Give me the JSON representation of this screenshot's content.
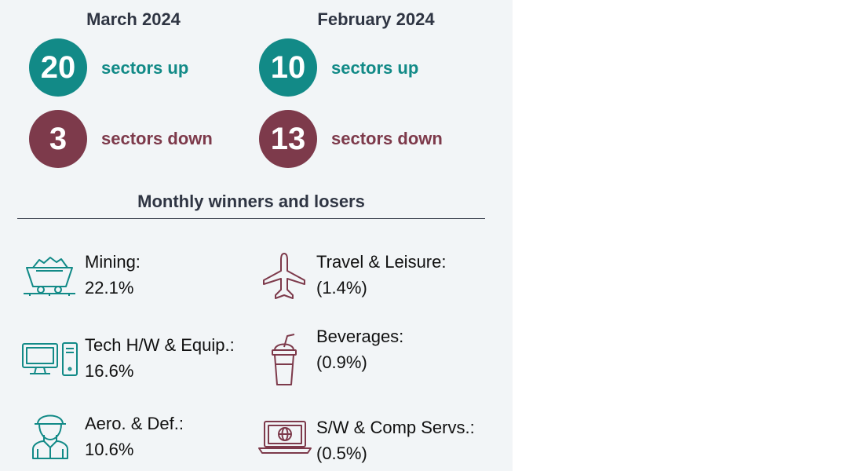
{
  "months": [
    {
      "title": "March 2024",
      "up_count": "20",
      "up_label": "sectors up",
      "down_count": "3",
      "down_label": "sectors down"
    },
    {
      "title": "February 2024",
      "up_count": "10",
      "up_label": "sectors up",
      "down_count": "13",
      "down_label": "sectors down"
    }
  ],
  "section_title": "Monthly winners and losers",
  "winners": [
    {
      "name": "Mining:",
      "value": "22.1%",
      "icon": "mine-cart-icon"
    },
    {
      "name": "Tech H/W & Equip.:",
      "value": "16.6%",
      "icon": "desktop-computer-icon"
    },
    {
      "name": "Aero. & Def.:",
      "value": "10.6%",
      "icon": "soldier-icon"
    }
  ],
  "losers": [
    {
      "name": "Travel & Leisure:",
      "value": "(1.4%)",
      "icon": "airplane-icon"
    },
    {
      "name": "Beverages:",
      "value": "(0.9%)",
      "icon": "drink-cup-icon"
    },
    {
      "name": "S/W & Comp Servs.:",
      "value": "(0.5%)",
      "icon": "laptop-globe-icon"
    }
  ],
  "colors": {
    "up": "#128a87",
    "down": "#7d3a4b",
    "heading": "#2f3543",
    "panel": "#f2f5f7"
  }
}
